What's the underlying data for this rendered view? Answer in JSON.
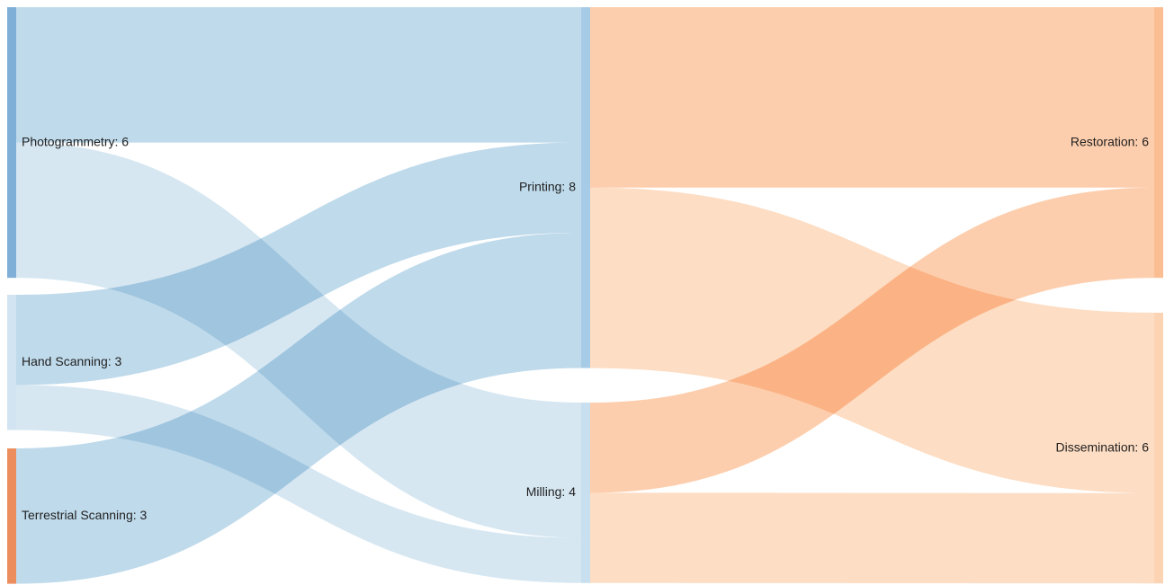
{
  "chart_data": {
    "type": "sankey",
    "nodes": [
      {
        "id": "photogrammetry",
        "name": "Photogrammetry",
        "value": 6,
        "label": "Photogrammetry: 6",
        "column": 0,
        "color": "#7fafd6"
      },
      {
        "id": "hand-scanning",
        "name": "Hand Scanning",
        "value": 3,
        "label": "Hand Scanning: 3",
        "column": 0,
        "color": "#d2e4f1"
      },
      {
        "id": "terrestrial-scanning",
        "name": "Terrestrial Scanning",
        "value": 3,
        "label": "Terrestrial Scanning: 3",
        "column": 0,
        "color": "#ec8d5e"
      },
      {
        "id": "printing",
        "name": "Printing",
        "value": 8,
        "label": "Printing: 8",
        "column": 1,
        "color": "#a6cbe6"
      },
      {
        "id": "milling",
        "name": "Milling",
        "value": 4,
        "label": "Milling: 4",
        "column": 1,
        "color": "#c8dff0"
      },
      {
        "id": "restoration",
        "name": "Restoration",
        "value": 6,
        "label": "Restoration: 6",
        "column": 2,
        "color": "#fbbe92"
      },
      {
        "id": "dissemination",
        "name": "Dissemination",
        "value": 6,
        "label": "Dissemination: 6",
        "column": 2,
        "color": "#fcd4b4"
      }
    ],
    "links": [
      {
        "source": "photogrammetry",
        "target": "printing",
        "value": 3,
        "color": "#b4d4e8"
      },
      {
        "source": "photogrammetry",
        "target": "milling",
        "value": 3,
        "color": "#cfe3f0"
      },
      {
        "source": "hand-scanning",
        "target": "printing",
        "value": 2,
        "color": "#b4d4e8"
      },
      {
        "source": "hand-scanning",
        "target": "milling",
        "value": 1,
        "color": "#cfe3f0"
      },
      {
        "source": "terrestrial-scanning",
        "target": "printing",
        "value": 3,
        "color": "#b4d4e8"
      },
      {
        "source": "printing",
        "target": "restoration",
        "value": 4,
        "color": "#fdc59f"
      },
      {
        "source": "printing",
        "target": "dissemination",
        "value": 4,
        "color": "#fdd7b8"
      },
      {
        "source": "milling",
        "target": "restoration",
        "value": 2,
        "color": "#fdc59f"
      },
      {
        "source": "milling",
        "target": "dissemination",
        "value": 2,
        "color": "#fdd7b8"
      }
    ]
  }
}
